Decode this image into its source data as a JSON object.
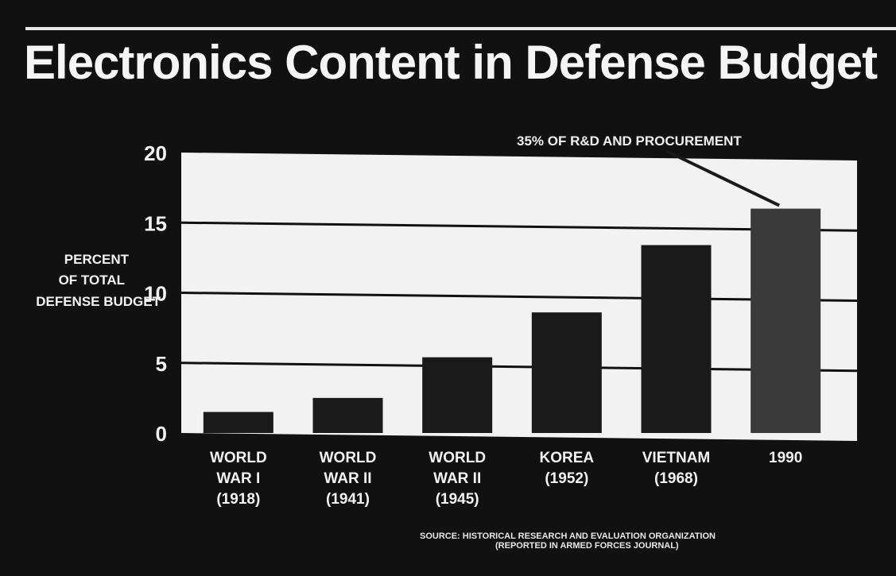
{
  "title": "Electronics Content in Defense Budget",
  "annotation": "35% OF R&D AND PROCUREMENT",
  "source": {
    "line1": "SOURCE: HISTORICAL RESEARCH AND EVALUATION ORGANIZATION",
    "line2": "(REPORTED IN ARMED FORCES JOURNAL)"
  },
  "ylabel_lines": [
    "PERCENT",
    "OF TOTAL",
    "DEFENSE BUDGET"
  ],
  "colors": {
    "background": "#111111",
    "plot_area": "#f2f2f2",
    "bars": "#1a1a1a",
    "bar_1990": "#3a3a3a",
    "gridlines": "#111111",
    "text": "#f2f2f2"
  },
  "chart_data": {
    "type": "bar",
    "title": "Electronics Content in Defense Budget",
    "ylabel": "PERCENT OF TOTAL DEFENSE BUDGET",
    "xlabel": "",
    "categories": [
      [
        "WORLD",
        "WAR I",
        "(1918)"
      ],
      [
        "WORLD",
        "WAR II",
        "(1941)"
      ],
      [
        "WORLD",
        "WAR II",
        "(1945)"
      ],
      [
        "KOREA",
        "(1952)"
      ],
      [
        "VIETNAM",
        "(1968)"
      ],
      [
        "1990"
      ]
    ],
    "values": [
      1.5,
      2.5,
      5.4,
      8.6,
      13.4,
      16.0
    ],
    "yticks": [
      0,
      5,
      10,
      15,
      20
    ],
    "ylim": [
      0,
      20
    ],
    "grid": true,
    "annotation_target": "1990"
  }
}
